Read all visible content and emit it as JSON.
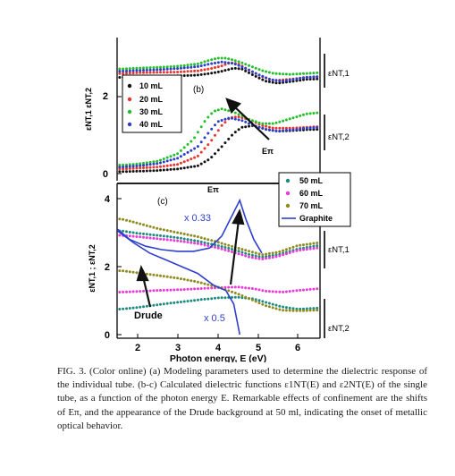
{
  "caption": "FIG. 3. (Color online) (a) Modeling parameters used to determine the dielectric response of the individual tube. (b-c) Calculated dielectric functions ε1NT(E) and ε2NT(E) of the single tube, as a function of the photon energy E. Remarkable effects of confinement are the shifts of Eπ, and the appearance of the Drude background at 50 ml, indicating the onset of metallic optical behavior.",
  "chart_data": [
    {
      "type": "scatter",
      "panel_label": "(b)",
      "ylabel": "εNT,1  εNT,2",
      "xlim": [
        1.5,
        6.6
      ],
      "yticks": [
        "0",
        "2"
      ],
      "legend_placement": "top-left",
      "series": [
        {
          "name": "10 mL",
          "color": "#111111",
          "eps1": [
            [
              1.6,
              2.5
            ],
            [
              2.0,
              2.52
            ],
            [
              2.5,
              2.53
            ],
            [
              3.0,
              2.54
            ],
            [
              3.5,
              2.56
            ],
            [
              3.8,
              2.6
            ],
            [
              4.1,
              2.66
            ],
            [
              4.4,
              2.74
            ],
            [
              4.6,
              2.72
            ],
            [
              4.9,
              2.55
            ],
            [
              5.2,
              2.4
            ],
            [
              5.5,
              2.35
            ],
            [
              5.9,
              2.4
            ],
            [
              6.2,
              2.45
            ],
            [
              6.5,
              2.46
            ]
          ],
          "eps2": [
            [
              1.6,
              0.05
            ],
            [
              2.0,
              0.06
            ],
            [
              2.5,
              0.08
            ],
            [
              3.0,
              0.12
            ],
            [
              3.5,
              0.2
            ],
            [
              3.8,
              0.38
            ],
            [
              4.1,
              0.7
            ],
            [
              4.4,
              1.05
            ],
            [
              4.6,
              1.2
            ],
            [
              4.9,
              1.25
            ],
            [
              5.2,
              1.15
            ],
            [
              5.5,
              1.1
            ],
            [
              5.9,
              1.12
            ],
            [
              6.2,
              1.14
            ],
            [
              6.5,
              1.15
            ]
          ]
        },
        {
          "name": "20 mL",
          "color": "#e8342a",
          "eps1": [
            [
              1.6,
              2.6
            ],
            [
              2.0,
              2.62
            ],
            [
              2.5,
              2.63
            ],
            [
              3.0,
              2.64
            ],
            [
              3.5,
              2.67
            ],
            [
              3.8,
              2.72
            ],
            [
              4.1,
              2.8
            ],
            [
              4.3,
              2.88
            ],
            [
              4.5,
              2.86
            ],
            [
              4.8,
              2.68
            ],
            [
              5.1,
              2.52
            ],
            [
              5.4,
              2.42
            ],
            [
              5.8,
              2.45
            ],
            [
              6.2,
              2.5
            ],
            [
              6.5,
              2.52
            ]
          ],
          "eps2": [
            [
              1.6,
              0.12
            ],
            [
              2.0,
              0.14
            ],
            [
              2.5,
              0.17
            ],
            [
              3.0,
              0.24
            ],
            [
              3.5,
              0.45
            ],
            [
              3.8,
              0.8
            ],
            [
              4.1,
              1.25
            ],
            [
              4.3,
              1.45
            ],
            [
              4.5,
              1.48
            ],
            [
              4.8,
              1.4
            ],
            [
              5.1,
              1.25
            ],
            [
              5.4,
              1.18
            ],
            [
              5.8,
              1.18
            ],
            [
              6.2,
              1.2
            ],
            [
              6.5,
              1.22
            ]
          ]
        },
        {
          "name": "30 mL",
          "color": "#22c02a",
          "eps1": [
            [
              1.6,
              2.72
            ],
            [
              2.0,
              2.74
            ],
            [
              2.5,
              2.76
            ],
            [
              3.0,
              2.79
            ],
            [
              3.5,
              2.85
            ],
            [
              3.8,
              2.95
            ],
            [
              4.0,
              3.0
            ],
            [
              4.2,
              3.0
            ],
            [
              4.5,
              2.92
            ],
            [
              4.8,
              2.8
            ],
            [
              5.1,
              2.68
            ],
            [
              5.4,
              2.6
            ],
            [
              5.8,
              2.58
            ],
            [
              6.2,
              2.6
            ],
            [
              6.5,
              2.62
            ]
          ],
          "eps2": [
            [
              1.6,
              0.22
            ],
            [
              2.0,
              0.25
            ],
            [
              2.5,
              0.32
            ],
            [
              3.0,
              0.52
            ],
            [
              3.4,
              0.9
            ],
            [
              3.7,
              1.4
            ],
            [
              3.9,
              1.62
            ],
            [
              4.1,
              1.68
            ],
            [
              4.4,
              1.6
            ],
            [
              4.8,
              1.4
            ],
            [
              5.1,
              1.3
            ],
            [
              5.4,
              1.3
            ],
            [
              5.8,
              1.42
            ],
            [
              6.2,
              1.55
            ],
            [
              6.5,
              1.58
            ]
          ]
        },
        {
          "name": "40 mL",
          "color": "#2a3ec8",
          "eps1": [
            [
              1.6,
              2.66
            ],
            [
              2.0,
              2.68
            ],
            [
              2.5,
              2.7
            ],
            [
              3.0,
              2.73
            ],
            [
              3.5,
              2.78
            ],
            [
              3.8,
              2.85
            ],
            [
              4.1,
              2.9
            ],
            [
              4.4,
              2.86
            ],
            [
              4.7,
              2.73
            ],
            [
              5.0,
              2.58
            ],
            [
              5.3,
              2.45
            ],
            [
              5.6,
              2.4
            ],
            [
              5.9,
              2.45
            ],
            [
              6.2,
              2.5
            ],
            [
              6.5,
              2.52
            ]
          ],
          "eps2": [
            [
              1.6,
              0.17
            ],
            [
              2.0,
              0.2
            ],
            [
              2.5,
              0.26
            ],
            [
              3.0,
              0.4
            ],
            [
              3.5,
              0.7
            ],
            [
              3.8,
              1.1
            ],
            [
              4.0,
              1.35
            ],
            [
              4.3,
              1.45
            ],
            [
              4.6,
              1.38
            ],
            [
              4.9,
              1.25
            ],
            [
              5.2,
              1.15
            ],
            [
              5.5,
              1.1
            ],
            [
              5.9,
              1.14
            ],
            [
              6.2,
              1.18
            ],
            [
              6.5,
              1.2
            ]
          ]
        }
      ],
      "annotations": [
        "Eπ",
        "εNT,1",
        "εNT,2"
      ]
    },
    {
      "type": "scatter",
      "panel_label": "(c)",
      "ylabel": "εNT,1 ; εNT,2",
      "xlabel": "Photon energy, E (eV)",
      "xlim": [
        1.5,
        6.6
      ],
      "ylim": [
        0,
        4.3
      ],
      "xticks": [
        2,
        3,
        4,
        5,
        6
      ],
      "yticks": [
        0,
        2,
        4
      ],
      "legend_placement": "top-right",
      "series": [
        {
          "name": "50 mL",
          "color": "#1d8a80",
          "eps1": [
            [
              1.6,
              3.05
            ],
            [
              2.0,
              2.98
            ],
            [
              2.5,
              2.92
            ],
            [
              3.0,
              2.85
            ],
            [
              3.5,
              2.75
            ],
            [
              4.0,
              2.62
            ],
            [
              4.4,
              2.5
            ],
            [
              4.8,
              2.35
            ],
            [
              5.1,
              2.28
            ],
            [
              5.5,
              2.35
            ],
            [
              6.0,
              2.52
            ],
            [
              6.5,
              2.62
            ]
          ],
          "eps2": [
            [
              1.6,
              0.75
            ],
            [
              2.0,
              0.8
            ],
            [
              2.5,
              0.88
            ],
            [
              3.0,
              0.95
            ],
            [
              3.5,
              1.02
            ],
            [
              4.0,
              1.08
            ],
            [
              4.5,
              1.1
            ],
            [
              4.9,
              1.05
            ],
            [
              5.2,
              0.95
            ],
            [
              5.6,
              0.82
            ],
            [
              6.0,
              0.75
            ],
            [
              6.5,
              0.78
            ]
          ]
        },
        {
          "name": "60 mL",
          "color": "#e83ad8",
          "eps1": [
            [
              1.6,
              2.92
            ],
            [
              2.0,
              2.88
            ],
            [
              2.5,
              2.82
            ],
            [
              3.0,
              2.76
            ],
            [
              3.5,
              2.68
            ],
            [
              4.0,
              2.55
            ],
            [
              4.4,
              2.42
            ],
            [
              4.8,
              2.28
            ],
            [
              5.1,
              2.22
            ],
            [
              5.5,
              2.3
            ],
            [
              6.0,
              2.48
            ],
            [
              6.5,
              2.55
            ]
          ],
          "eps2": [
            [
              1.6,
              1.25
            ],
            [
              2.0,
              1.27
            ],
            [
              2.5,
              1.3
            ],
            [
              3.0,
              1.32
            ],
            [
              3.5,
              1.35
            ],
            [
              4.0,
              1.38
            ],
            [
              4.5,
              1.4
            ],
            [
              4.9,
              1.35
            ],
            [
              5.2,
              1.28
            ],
            [
              5.6,
              1.25
            ],
            [
              6.0,
              1.3
            ],
            [
              6.5,
              1.35
            ]
          ]
        },
        {
          "name": "70 mL",
          "color": "#8f8a1e",
          "eps1": [
            [
              1.6,
              3.4
            ],
            [
              2.0,
              3.28
            ],
            [
              2.5,
              3.12
            ],
            [
              3.0,
              3.0
            ],
            [
              3.5,
              2.88
            ],
            [
              4.0,
              2.72
            ],
            [
              4.4,
              2.58
            ],
            [
              4.8,
              2.45
            ],
            [
              5.1,
              2.35
            ],
            [
              5.5,
              2.42
            ],
            [
              6.0,
              2.62
            ],
            [
              6.5,
              2.7
            ]
          ],
          "eps2": [
            [
              1.6,
              1.88
            ],
            [
              2.0,
              1.82
            ],
            [
              2.5,
              1.74
            ],
            [
              3.0,
              1.66
            ],
            [
              3.5,
              1.55
            ],
            [
              4.0,
              1.4
            ],
            [
              4.5,
              1.2
            ],
            [
              4.9,
              1.0
            ],
            [
              5.2,
              0.85
            ],
            [
              5.6,
              0.72
            ],
            [
              6.0,
              0.7
            ],
            [
              6.5,
              0.72
            ]
          ]
        }
      ],
      "graphite": {
        "name": "Graphite",
        "color": "#2e3fd0",
        "eps1_scaled": [
          [
            1.5,
            3.1
          ],
          [
            1.8,
            2.8
          ],
          [
            2.2,
            2.6
          ],
          [
            2.6,
            2.5
          ],
          [
            3.0,
            2.45
          ],
          [
            3.4,
            2.45
          ],
          [
            3.8,
            2.55
          ],
          [
            4.1,
            2.9
          ],
          [
            4.4,
            3.6
          ],
          [
            4.55,
            3.95
          ],
          [
            4.7,
            3.4
          ],
          [
            4.9,
            2.8
          ],
          [
            5.1,
            2.4
          ]
        ],
        "eps2_scaled": [
          [
            1.5,
            3.05
          ],
          [
            1.9,
            2.7
          ],
          [
            2.3,
            2.4
          ],
          [
            2.7,
            2.2
          ],
          [
            3.1,
            2.0
          ],
          [
            3.5,
            1.8
          ],
          [
            3.9,
            1.45
          ],
          [
            4.2,
            1.3
          ],
          [
            4.4,
            0.9
          ],
          [
            4.5,
            0.3
          ],
          [
            4.55,
            0.0
          ]
        ]
      },
      "annotations": [
        "Eπ",
        "x 0.33",
        "x 0.5",
        "Drude",
        "εNT,1",
        "εNT,2"
      ]
    }
  ],
  "labels": {
    "panel_b": "(b)",
    "panel_c": "(c)",
    "epi_b": "Eπ",
    "epi_c": "Eπ",
    "scale_033": "x 0.33",
    "scale_05": "x 0.5",
    "drude": "Drude",
    "ylabel_b": "εNT,1  εNT,2",
    "ylabel_c": "εNT,1 ; εNT,2",
    "xlabel": "Photon energy, E (eV)",
    "ent1_b": "εNT,1",
    "ent2_b": "εNT,2",
    "ent1_c": "εNT,1",
    "ent2_c": "εNT,2",
    "yt_b0": "0",
    "yt_b2": "2",
    "yt_c0": "0",
    "yt_c2": "2",
    "yt_c4": "4",
    "xt2": "2",
    "xt3": "3",
    "xt4": "4",
    "xt5": "5",
    "xt6": "6"
  },
  "legend_b": [
    "10 mL",
    "20 mL",
    "30 mL",
    "40 mL"
  ],
  "legend_c": [
    "50 mL",
    "60 mL",
    "70 mL",
    "Graphite"
  ]
}
